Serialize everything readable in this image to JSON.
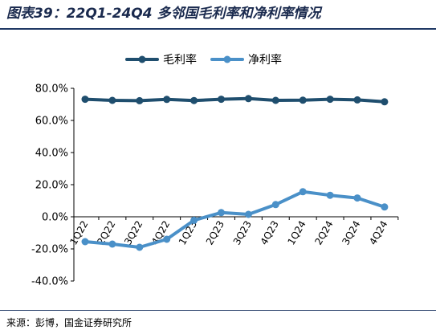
{
  "title": "图表39：22Q1-24Q4 多邻国毛利率和净利率情况",
  "source": "来源：彭博，国金证券研究所",
  "chart_data": {
    "type": "line",
    "categories": [
      "1Q22",
      "2Q22",
      "3Q22",
      "4Q22",
      "1Q23",
      "2Q23",
      "3Q23",
      "4Q23",
      "1Q24",
      "2Q24",
      "3Q24",
      "4Q24"
    ],
    "series": [
      {
        "name": "毛利率",
        "color": "#1f4e6e",
        "values": [
          73.2,
          72.5,
          72.3,
          73.1,
          72.4,
          73.2,
          73.6,
          72.5,
          72.6,
          73.2,
          72.8,
          71.6
        ]
      },
      {
        "name": "净利率",
        "color": "#4a90c8",
        "values": [
          -15.5,
          -17.0,
          -19.0,
          -14.0,
          -2.2,
          2.6,
          1.5,
          7.6,
          15.6,
          13.4,
          11.7,
          6.1
        ]
      }
    ],
    "yticks": [
      "80.0%",
      "60.0%",
      "40.0%",
      "20.0%",
      "0.0%",
      "-20.0%",
      "-40.0%"
    ],
    "ytick_values": [
      80,
      60,
      40,
      20,
      0,
      -20,
      -40
    ],
    "ylim": [
      -40,
      80
    ],
    "legend_position": "top",
    "grid": false
  }
}
